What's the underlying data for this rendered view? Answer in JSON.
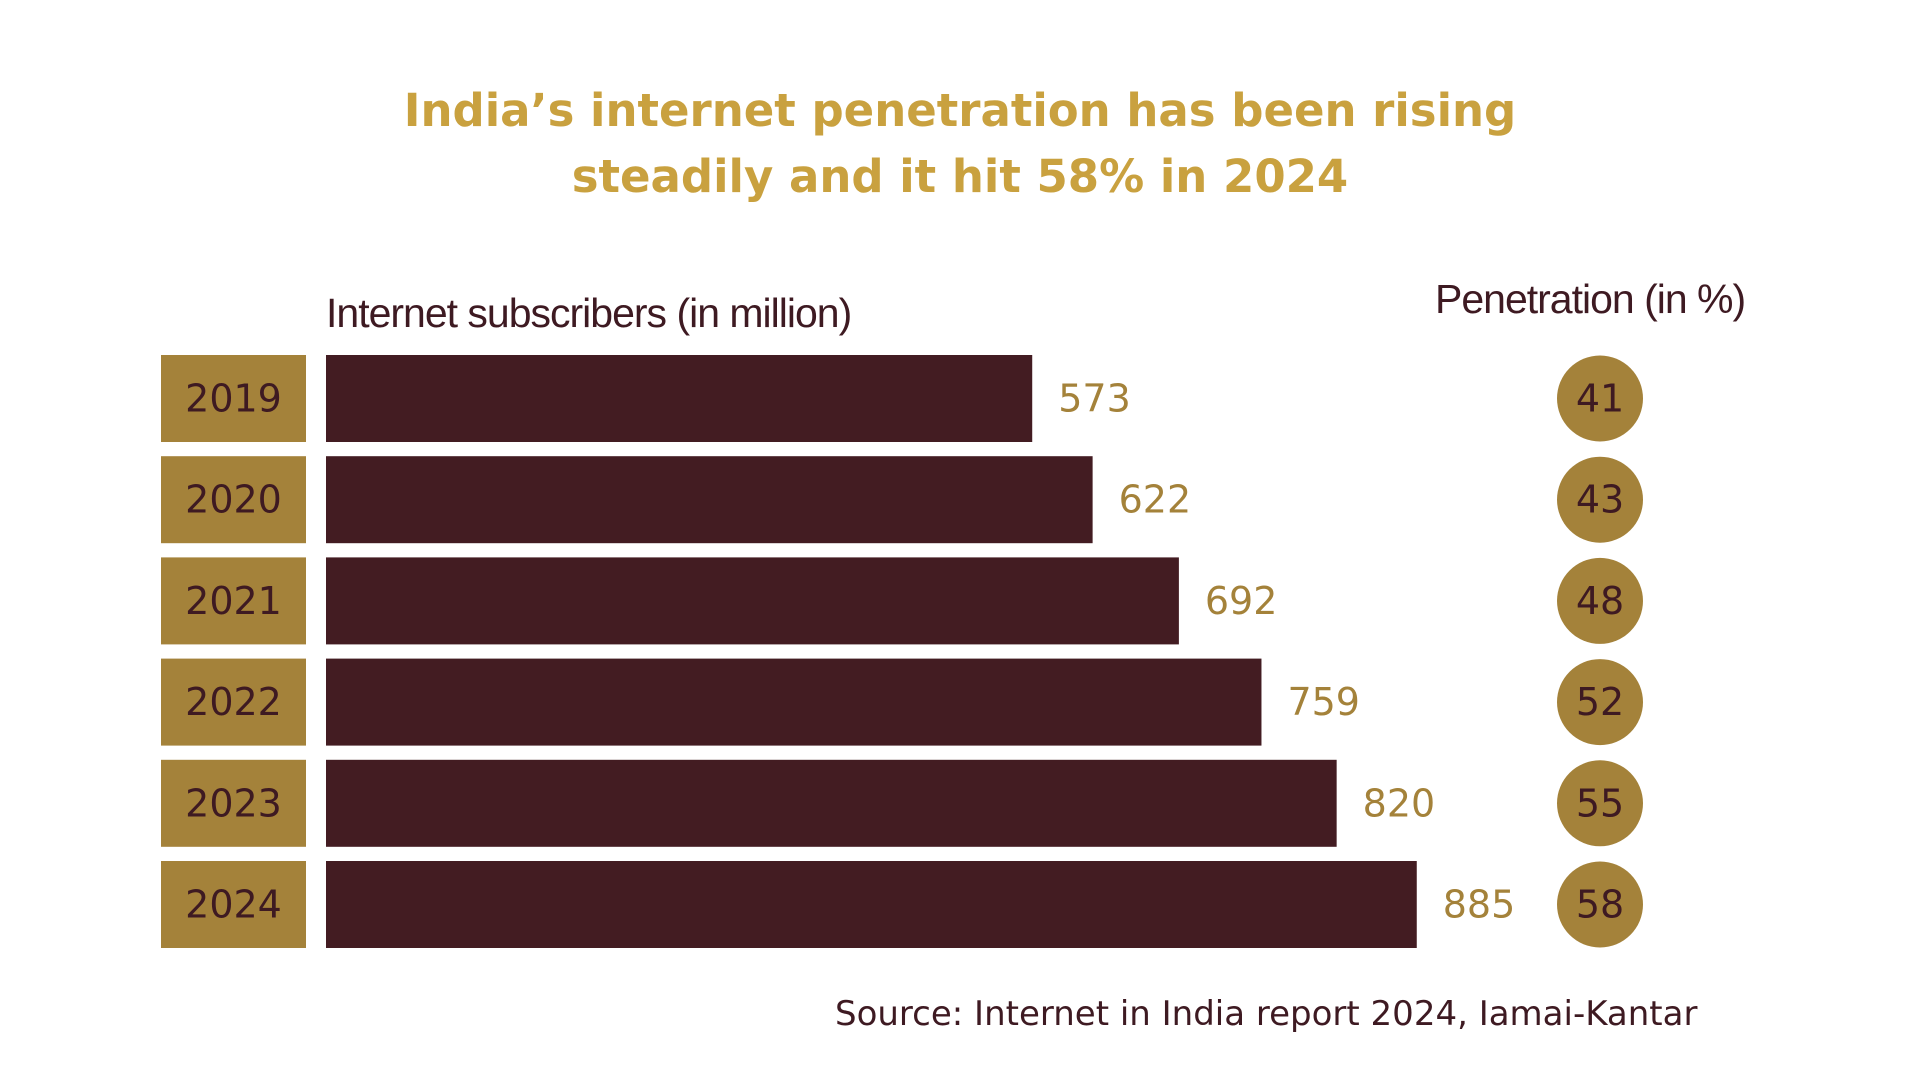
{
  "colors": {
    "title": "#c9a13f",
    "gold": "#a4823a",
    "bar": "#431c22",
    "dark_text": "#3e1a22",
    "value_text": "#a4823a"
  },
  "chart_data": {
    "type": "bar",
    "orientation": "horizontal",
    "title": "India’s internet penetration has been rising steadily and it hit 58% in 2024",
    "title_lines": [
      "India’s internet penetration has been rising",
      "steadily and it hit 58% in 2024"
    ],
    "categories": [
      "2019",
      "2020",
      "2021",
      "2022",
      "2023",
      "2024"
    ],
    "series": [
      {
        "name": "Internet subscribers (in million)",
        "values": [
          573,
          622,
          692,
          759,
          820,
          885
        ]
      },
      {
        "name": "Penetration (in %)",
        "values": [
          41,
          43,
          48,
          52,
          55,
          58
        ]
      }
    ],
    "xlim": [
      0,
      1000
    ],
    "grid": false,
    "legend": "none",
    "source": "Source: Internet in India report 2024, Iamai-Kantar"
  }
}
